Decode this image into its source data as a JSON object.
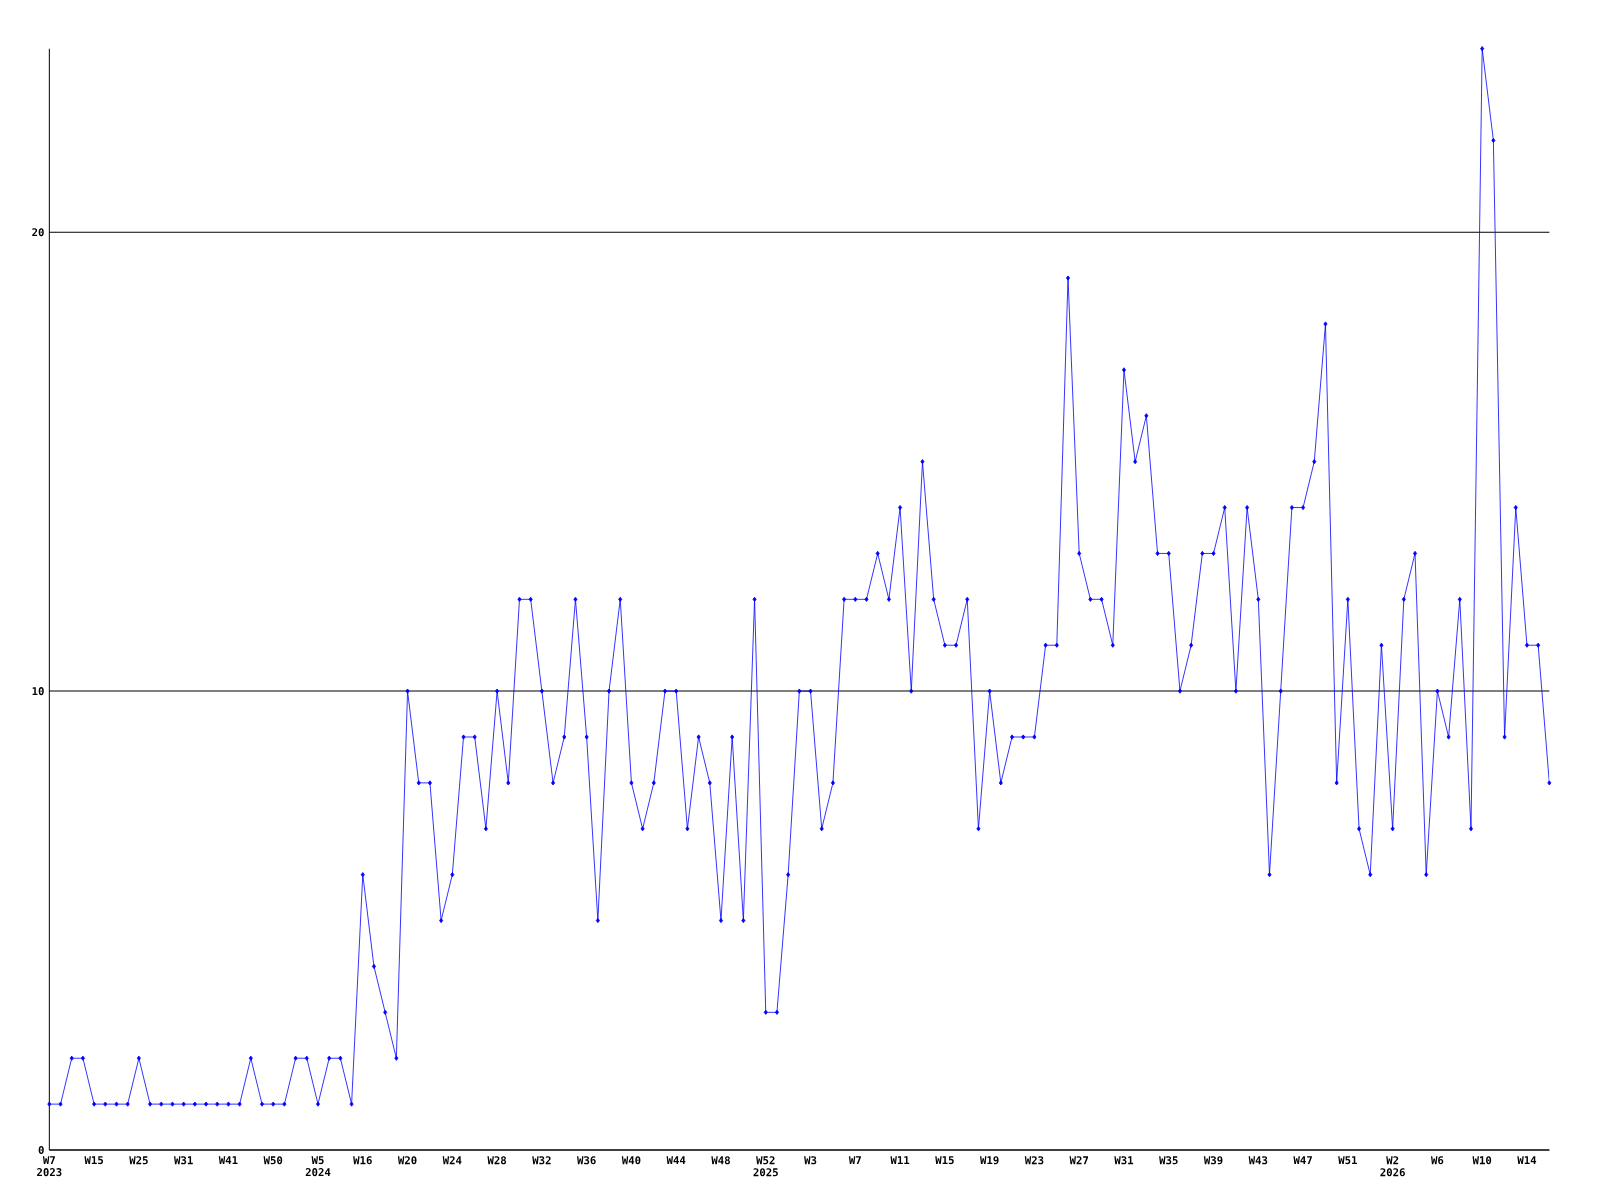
{
  "chart_data": {
    "type": "line",
    "categories": [
      "W7\n2023",
      null,
      null,
      null,
      "W15",
      null,
      null,
      null,
      "W25",
      null,
      null,
      null,
      "W31",
      null,
      null,
      null,
      "W41",
      null,
      null,
      null,
      "W50",
      null,
      null,
      null,
      "W5\n2024",
      null,
      null,
      null,
      "W16",
      null,
      null,
      null,
      "W20",
      null,
      null,
      null,
      "W24",
      null,
      null,
      null,
      "W28",
      null,
      null,
      null,
      "W32",
      null,
      null,
      null,
      "W36",
      null,
      null,
      null,
      "W40",
      null,
      null,
      null,
      "W44",
      null,
      null,
      null,
      "W48",
      null,
      null,
      null,
      "W52\n2025",
      null,
      null,
      null,
      "W3",
      null,
      null,
      null,
      "W7",
      null,
      null,
      null,
      "W11",
      null,
      null,
      null,
      "W15",
      null,
      null,
      null,
      "W19",
      null,
      null,
      null,
      "W23",
      null,
      null,
      null,
      "W27",
      null,
      null,
      null,
      "W31",
      null,
      null,
      null,
      "W35",
      null,
      null,
      null,
      "W39",
      null,
      null,
      null,
      "W43",
      null,
      null,
      null,
      "W47",
      null,
      null,
      null,
      "W51",
      null,
      null,
      null,
      "W2\n2026",
      null,
      null,
      null,
      "W6",
      null,
      null,
      null,
      "W10",
      null,
      null,
      null,
      "W14",
      null,
      null
    ],
    "values": [
      1,
      1,
      2,
      2,
      1,
      1,
      1,
      1,
      2,
      1,
      1,
      1,
      1,
      1,
      1,
      1,
      1,
      1,
      2,
      1,
      1,
      1,
      2,
      2,
      1,
      2,
      2,
      1,
      6,
      4,
      3,
      2,
      10,
      8,
      8,
      5,
      6,
      9,
      9,
      7,
      10,
      8,
      12,
      12,
      10,
      8,
      9,
      12,
      9,
      5,
      10,
      12,
      8,
      7,
      8,
      10,
      10,
      7,
      9,
      8,
      5,
      9,
      5,
      12,
      3,
      3,
      6,
      10,
      10,
      7,
      8,
      12,
      12,
      12,
      13,
      12,
      14,
      10,
      15,
      12,
      11,
      11,
      12,
      7,
      10,
      8,
      9,
      9,
      9,
      11,
      11,
      19,
      13,
      12,
      12,
      11,
      17,
      15,
      16,
      13,
      13,
      10,
      11,
      13,
      13,
      14,
      10,
      14,
      12,
      6,
      10,
      14,
      14,
      15,
      18,
      8,
      12,
      7,
      6,
      11,
      7,
      12,
      13,
      6,
      10,
      9,
      12,
      7,
      24,
      22,
      9,
      14,
      11,
      11,
      8
    ],
    "color": "#0000ff",
    "marker": "diamond",
    "grid": "y",
    "ylim": [
      0,
      24
    ],
    "yticks": [
      0,
      10,
      20
    ]
  }
}
